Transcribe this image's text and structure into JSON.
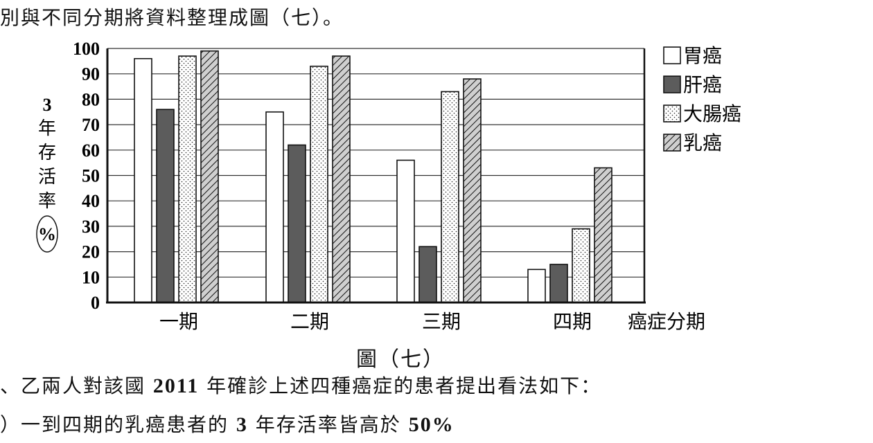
{
  "text": {
    "top_line": "別與不同分期將資料整理成圖（七）。",
    "caption": "圖（七）",
    "opinion_line_a": "、乙兩人對該國 ",
    "opinion_year": "2011",
    "opinion_line_b": " 年確診上述四種癌症的患者提出看法如下：",
    "claim_a": "）一到四期的乳癌患者的 ",
    "claim_num": "3",
    "claim_b": " 年存活率皆高於 ",
    "claim_pct": "50%"
  },
  "chart_data": {
    "type": "bar",
    "title": "",
    "xlabel": "癌症分期",
    "ylabel_number": "3",
    "ylabel_chars": [
      "年",
      "存",
      "活",
      "率"
    ],
    "ylabel_unit": "%",
    "ylim": [
      0,
      100
    ],
    "yticks": [
      0,
      10,
      20,
      30,
      40,
      50,
      60,
      70,
      80,
      90,
      100
    ],
    "grid": true,
    "legend_position": "right",
    "categories": [
      "一期",
      "二期",
      "三期",
      "四期"
    ],
    "series": [
      {
        "name": "胃癌",
        "pattern": "white",
        "values": [
          96,
          75,
          56,
          13
        ]
      },
      {
        "name": "肝癌",
        "pattern": "dark-gray",
        "values": [
          76,
          62,
          22,
          15
        ]
      },
      {
        "name": "大腸癌",
        "pattern": "dotted",
        "values": [
          97,
          93,
          83,
          29
        ]
      },
      {
        "name": "乳癌",
        "pattern": "hatched",
        "values": [
          99,
          97,
          88,
          53
        ]
      }
    ],
    "colors": {
      "dark": "#5c5c5c",
      "hatch_bg": "#cfcfcf",
      "axis": "#111111"
    }
  }
}
